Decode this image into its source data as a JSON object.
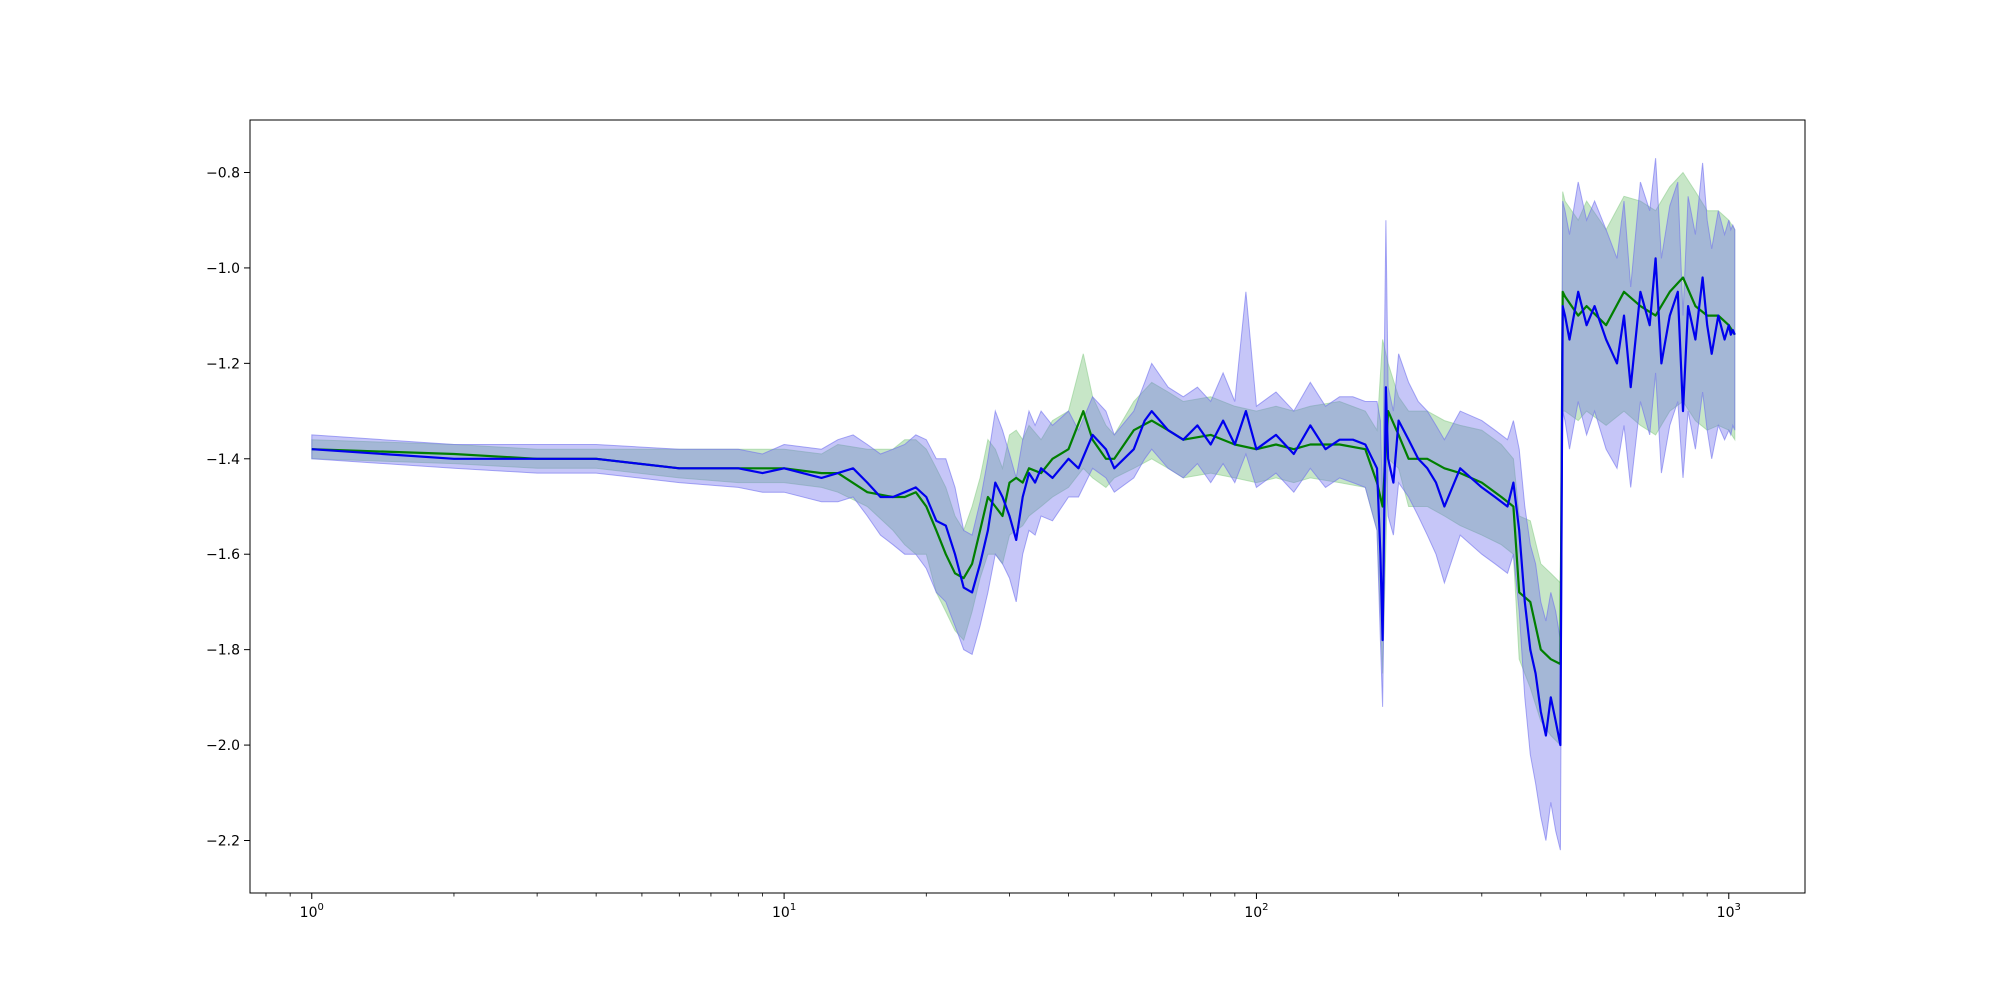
{
  "chart_data": {
    "type": "line",
    "title": "",
    "xlabel": "",
    "ylabel": "",
    "xscale": "log",
    "xlim": [
      0.74,
      1450
    ],
    "ylim": [
      -2.31,
      -0.69
    ],
    "grid": false,
    "x_ticks": [
      {
        "value": 1,
        "base": "10",
        "exp": "0"
      },
      {
        "value": 10,
        "base": "10",
        "exp": "1"
      },
      {
        "value": 100,
        "base": "10",
        "exp": "2"
      },
      {
        "value": 1000,
        "base": "10",
        "exp": "3"
      }
    ],
    "y_ticks": [
      {
        "value": -0.8,
        "label": "−0.8"
      },
      {
        "value": -1.0,
        "label": "−1.0"
      },
      {
        "value": -1.2,
        "label": "−1.2"
      },
      {
        "value": -1.4,
        "label": "−1.4"
      },
      {
        "value": -1.6,
        "label": "−1.6"
      },
      {
        "value": -1.8,
        "label": "−1.8"
      },
      {
        "value": -2.0,
        "label": "−2.0"
      },
      {
        "value": -2.2,
        "label": "−2.2"
      }
    ],
    "colors": {
      "green_line": "#007f00",
      "green_band": "#8fce8f",
      "blue_line": "#0000ee",
      "blue_band": "#7070ee",
      "overlap": "#9aabd0"
    },
    "series": [
      {
        "color": "green",
        "x": [
          1,
          2,
          3,
          4,
          6,
          8,
          10,
          12,
          13,
          15,
          17,
          18,
          19,
          20,
          21,
          22,
          23,
          24,
          25,
          26,
          27,
          28,
          29,
          30,
          31,
          32,
          33,
          35,
          37,
          40,
          43,
          45,
          48,
          50,
          55,
          60,
          65,
          70,
          80,
          90,
          100,
          110,
          120,
          130,
          150,
          170,
          180,
          185,
          190,
          200,
          210,
          230,
          250,
          270,
          300,
          330,
          350,
          360,
          380,
          400,
          420,
          440,
          445,
          450,
          480,
          500,
          550,
          600,
          650,
          700,
          750,
          800,
          850,
          900,
          950,
          1000,
          1030
        ],
        "y": [
          -1.38,
          -1.39,
          -1.4,
          -1.4,
          -1.42,
          -1.42,
          -1.42,
          -1.43,
          -1.43,
          -1.47,
          -1.48,
          -1.48,
          -1.47,
          -1.5,
          -1.55,
          -1.6,
          -1.64,
          -1.65,
          -1.62,
          -1.55,
          -1.48,
          -1.5,
          -1.52,
          -1.45,
          -1.44,
          -1.45,
          -1.42,
          -1.43,
          -1.4,
          -1.38,
          -1.3,
          -1.36,
          -1.4,
          -1.4,
          -1.34,
          -1.32,
          -1.34,
          -1.36,
          -1.35,
          -1.37,
          -1.38,
          -1.37,
          -1.38,
          -1.37,
          -1.37,
          -1.38,
          -1.45,
          -1.5,
          -1.3,
          -1.35,
          -1.4,
          -1.4,
          -1.42,
          -1.43,
          -1.45,
          -1.48,
          -1.5,
          -1.68,
          -1.7,
          -1.8,
          -1.82,
          -1.83,
          -1.05,
          -1.06,
          -1.1,
          -1.08,
          -1.12,
          -1.05,
          -1.08,
          -1.1,
          -1.05,
          -1.02,
          -1.08,
          -1.1,
          -1.1,
          -1.12,
          -1.14
        ],
        "lower": [
          -1.4,
          -1.41,
          -1.42,
          -1.42,
          -1.44,
          -1.45,
          -1.45,
          -1.46,
          -1.47,
          -1.5,
          -1.55,
          -1.58,
          -1.6,
          -1.6,
          -1.68,
          -1.72,
          -1.76,
          -1.78,
          -1.72,
          -1.65,
          -1.6,
          -1.6,
          -1.62,
          -1.56,
          -1.55,
          -1.54,
          -1.52,
          -1.5,
          -1.48,
          -1.46,
          -1.42,
          -1.44,
          -1.46,
          -1.44,
          -1.42,
          -1.4,
          -1.42,
          -1.44,
          -1.43,
          -1.44,
          -1.45,
          -1.44,
          -1.45,
          -1.44,
          -1.45,
          -1.46,
          -1.55,
          -1.85,
          -1.4,
          -1.42,
          -1.5,
          -1.5,
          -1.52,
          -1.54,
          -1.56,
          -1.58,
          -1.6,
          -1.82,
          -1.88,
          -1.95,
          -1.98,
          -2.0,
          -1.3,
          -1.3,
          -1.32,
          -1.3,
          -1.33,
          -1.3,
          -1.33,
          -1.35,
          -1.3,
          -1.28,
          -1.32,
          -1.34,
          -1.33,
          -1.34,
          -1.36
        ],
        "upper": [
          -1.36,
          -1.37,
          -1.38,
          -1.38,
          -1.38,
          -1.38,
          -1.38,
          -1.39,
          -1.37,
          -1.38,
          -1.38,
          -1.36,
          -1.36,
          -1.38,
          -1.42,
          -1.46,
          -1.52,
          -1.55,
          -1.5,
          -1.44,
          -1.36,
          -1.38,
          -1.42,
          -1.35,
          -1.34,
          -1.36,
          -1.33,
          -1.36,
          -1.32,
          -1.3,
          -1.18,
          -1.27,
          -1.33,
          -1.35,
          -1.28,
          -1.24,
          -1.26,
          -1.28,
          -1.27,
          -1.29,
          -1.3,
          -1.29,
          -1.3,
          -1.29,
          -1.28,
          -1.3,
          -1.34,
          -1.15,
          -1.2,
          -1.27,
          -1.3,
          -1.3,
          -1.32,
          -1.33,
          -1.34,
          -1.37,
          -1.4,
          -1.52,
          -1.53,
          -1.62,
          -1.64,
          -1.66,
          -0.84,
          -0.86,
          -0.9,
          -0.86,
          -0.92,
          -0.85,
          -0.86,
          -0.88,
          -0.83,
          -0.8,
          -0.84,
          -0.88,
          -0.88,
          -0.9,
          -0.92
        ]
      },
      {
        "color": "blue",
        "x": [
          1,
          2,
          3,
          4,
          6,
          8,
          9,
          10,
          12,
          13,
          14,
          15,
          16,
          17,
          18,
          19,
          20,
          21,
          22,
          23,
          24,
          25,
          26,
          27,
          28,
          29,
          30,
          31,
          32,
          33,
          34,
          35,
          37,
          40,
          42,
          45,
          48,
          50,
          55,
          58,
          60,
          65,
          70,
          75,
          80,
          85,
          90,
          95,
          100,
          110,
          120,
          130,
          140,
          150,
          160,
          170,
          180,
          183,
          185,
          188,
          190,
          195,
          200,
          210,
          220,
          230,
          240,
          250,
          270,
          300,
          320,
          340,
          350,
          360,
          370,
          380,
          390,
          400,
          410,
          420,
          430,
          440,
          445,
          450,
          460,
          480,
          500,
          520,
          550,
          580,
          600,
          620,
          650,
          680,
          700,
          720,
          750,
          780,
          800,
          820,
          850,
          880,
          900,
          920,
          950,
          980,
          1000,
          1010,
          1020,
          1030
        ],
        "y": [
          -1.38,
          -1.4,
          -1.4,
          -1.4,
          -1.42,
          -1.42,
          -1.43,
          -1.42,
          -1.44,
          -1.43,
          -1.42,
          -1.45,
          -1.48,
          -1.48,
          -1.47,
          -1.46,
          -1.48,
          -1.53,
          -1.54,
          -1.6,
          -1.67,
          -1.68,
          -1.62,
          -1.55,
          -1.45,
          -1.48,
          -1.52,
          -1.57,
          -1.48,
          -1.43,
          -1.45,
          -1.42,
          -1.44,
          -1.4,
          -1.42,
          -1.35,
          -1.38,
          -1.42,
          -1.38,
          -1.32,
          -1.3,
          -1.34,
          -1.36,
          -1.33,
          -1.37,
          -1.32,
          -1.37,
          -1.3,
          -1.38,
          -1.35,
          -1.39,
          -1.33,
          -1.38,
          -1.36,
          -1.36,
          -1.37,
          -1.42,
          -1.6,
          -1.78,
          -1.25,
          -1.4,
          -1.45,
          -1.32,
          -1.36,
          -1.4,
          -1.42,
          -1.45,
          -1.5,
          -1.42,
          -1.46,
          -1.48,
          -1.5,
          -1.45,
          -1.55,
          -1.7,
          -1.8,
          -1.85,
          -1.93,
          -1.98,
          -1.9,
          -1.95,
          -2.0,
          -1.08,
          -1.1,
          -1.15,
          -1.05,
          -1.12,
          -1.08,
          -1.15,
          -1.2,
          -1.1,
          -1.25,
          -1.05,
          -1.12,
          -0.98,
          -1.2,
          -1.1,
          -1.05,
          -1.3,
          -1.08,
          -1.15,
          -1.02,
          -1.12,
          -1.18,
          -1.1,
          -1.15,
          -1.12,
          -1.14,
          -1.13,
          -1.14
        ],
        "lower": [
          -1.4,
          -1.42,
          -1.43,
          -1.43,
          -1.45,
          -1.46,
          -1.47,
          -1.47,
          -1.49,
          -1.49,
          -1.48,
          -1.52,
          -1.56,
          -1.58,
          -1.6,
          -1.6,
          -1.63,
          -1.68,
          -1.7,
          -1.75,
          -1.8,
          -1.81,
          -1.75,
          -1.68,
          -1.6,
          -1.62,
          -1.65,
          -1.7,
          -1.6,
          -1.55,
          -1.56,
          -1.52,
          -1.53,
          -1.48,
          -1.48,
          -1.42,
          -1.44,
          -1.47,
          -1.44,
          -1.4,
          -1.38,
          -1.42,
          -1.44,
          -1.41,
          -1.45,
          -1.41,
          -1.45,
          -1.39,
          -1.46,
          -1.43,
          -1.47,
          -1.42,
          -1.46,
          -1.44,
          -1.45,
          -1.46,
          -1.55,
          -1.78,
          -1.92,
          -1.4,
          -1.52,
          -1.56,
          -1.45,
          -1.48,
          -1.52,
          -1.56,
          -1.6,
          -1.66,
          -1.56,
          -1.6,
          -1.62,
          -1.64,
          -1.6,
          -1.72,
          -1.9,
          -2.02,
          -2.08,
          -2.15,
          -2.2,
          -2.12,
          -2.18,
          -2.22,
          -1.3,
          -1.32,
          -1.38,
          -1.28,
          -1.35,
          -1.3,
          -1.38,
          -1.42,
          -1.33,
          -1.46,
          -1.28,
          -1.35,
          -1.22,
          -1.43,
          -1.33,
          -1.28,
          -1.44,
          -1.3,
          -1.38,
          -1.26,
          -1.34,
          -1.4,
          -1.33,
          -1.36,
          -1.34,
          -1.35,
          -1.33,
          -1.34
        ],
        "upper": [
          -1.35,
          -1.37,
          -1.37,
          -1.37,
          -1.38,
          -1.38,
          -1.39,
          -1.37,
          -1.38,
          -1.36,
          -1.35,
          -1.37,
          -1.39,
          -1.38,
          -1.37,
          -1.35,
          -1.36,
          -1.4,
          -1.4,
          -1.46,
          -1.55,
          -1.56,
          -1.49,
          -1.4,
          -1.3,
          -1.34,
          -1.39,
          -1.44,
          -1.36,
          -1.3,
          -1.33,
          -1.3,
          -1.33,
          -1.3,
          -1.34,
          -1.27,
          -1.3,
          -1.35,
          -1.3,
          -1.24,
          -1.2,
          -1.25,
          -1.27,
          -1.25,
          -1.28,
          -1.22,
          -1.28,
          -1.05,
          -1.29,
          -1.26,
          -1.3,
          -1.24,
          -1.29,
          -1.27,
          -1.27,
          -1.28,
          -1.28,
          -1.32,
          -1.5,
          -0.9,
          -1.25,
          -1.3,
          -1.18,
          -1.24,
          -1.28,
          -1.3,
          -1.33,
          -1.36,
          -1.3,
          -1.32,
          -1.34,
          -1.36,
          -1.32,
          -1.38,
          -1.5,
          -1.58,
          -1.62,
          -1.7,
          -1.74,
          -1.68,
          -1.72,
          -1.78,
          -0.86,
          -0.88,
          -0.93,
          -0.82,
          -0.9,
          -0.86,
          -0.92,
          -0.98,
          -0.86,
          -1.04,
          -0.82,
          -0.88,
          -0.77,
          -0.98,
          -0.87,
          -0.82,
          -1.1,
          -0.85,
          -0.93,
          -0.78,
          -0.9,
          -0.96,
          -0.88,
          -0.93,
          -0.9,
          -0.92,
          -0.91,
          -0.92
        ]
      }
    ]
  }
}
